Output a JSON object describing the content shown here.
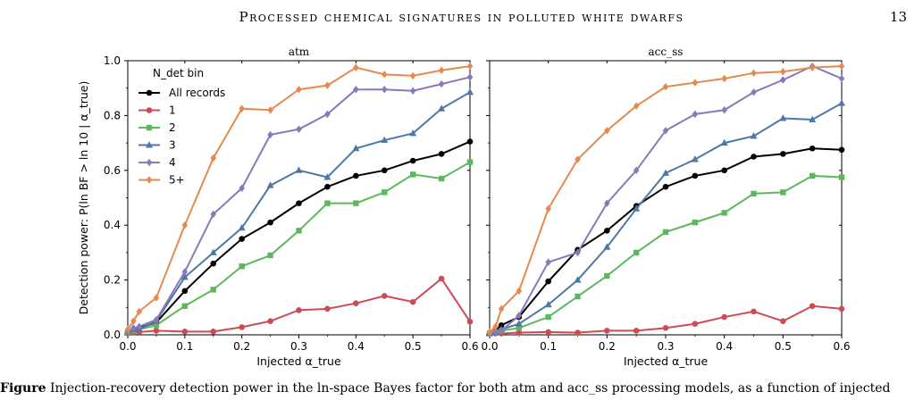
{
  "page": {
    "running_title": "Processed chemical signatures in polluted white dwarfs",
    "page_number": "13",
    "caption_lead": "Figure",
    "caption_text": "Injection-recovery detection power in the ln-space Bayes factor for both atm and acc_ss processing models, as a function of injected"
  },
  "chart_data": [
    {
      "type": "line",
      "title": "atm",
      "xlabel": "Injected α_true",
      "ylabel": "Detection power: P(ln BF > ln 10 | α_true)",
      "xlim": [
        0.0,
        0.6
      ],
      "ylim": [
        0.0,
        1.0
      ],
      "xticks": [
        "0.0",
        "0.1",
        "0.2",
        "0.3",
        "0.4",
        "0.5",
        "0.6"
      ],
      "yticks": [
        "0.0",
        "0.2",
        "0.4",
        "0.6",
        "0.8",
        "1.0"
      ],
      "legend_title": "N_det bin",
      "legend_position": "upper-left",
      "x": [
        0.0,
        0.01,
        0.02,
        0.05,
        0.1,
        0.15,
        0.2,
        0.25,
        0.3,
        0.35,
        0.4,
        0.45,
        0.5,
        0.55,
        0.6
      ],
      "series": [
        {
          "name": "All records",
          "color": "#000000",
          "marker": "circle",
          "values": [
            0.01,
            0.02,
            0.025,
            0.045,
            0.16,
            0.26,
            0.35,
            0.41,
            0.48,
            0.54,
            0.58,
            0.6,
            0.635,
            0.66,
            0.705
          ]
        },
        {
          "name": "1",
          "color": "#cc4c56",
          "marker": "circle",
          "values": [
            0.005,
            0.008,
            0.01,
            0.015,
            0.012,
            0.012,
            0.028,
            0.05,
            0.09,
            0.095,
            0.115,
            0.142,
            0.12,
            0.205,
            0.048
          ]
        },
        {
          "name": "2",
          "color": "#5cb85c",
          "marker": "square",
          "values": [
            0.01,
            0.015,
            0.02,
            0.035,
            0.105,
            0.165,
            0.25,
            0.29,
            0.38,
            0.48,
            0.48,
            0.52,
            0.585,
            0.57,
            0.63
          ]
        },
        {
          "name": "3",
          "color": "#4d78a8",
          "marker": "triangle",
          "values": [
            0.015,
            0.02,
            0.02,
            0.05,
            0.21,
            0.3,
            0.39,
            0.545,
            0.6,
            0.575,
            0.68,
            0.71,
            0.735,
            0.825,
            0.885
          ]
        },
        {
          "name": "4",
          "color": "#8a78b8",
          "marker": "diamond",
          "values": [
            0.01,
            0.025,
            0.03,
            0.055,
            0.23,
            0.44,
            0.535,
            0.73,
            0.75,
            0.805,
            0.895,
            0.895,
            0.89,
            0.915,
            0.94
          ]
        },
        {
          "name": "5+",
          "color": "#e6894e",
          "marker": "diamond",
          "values": [
            0.02,
            0.05,
            0.085,
            0.135,
            0.4,
            0.645,
            0.825,
            0.82,
            0.895,
            0.91,
            0.975,
            0.95,
            0.945,
            0.965,
            0.98
          ]
        }
      ]
    },
    {
      "type": "line",
      "title": "acc_ss",
      "xlabel": "Injected α_true",
      "ylabel": "",
      "xlim": [
        0.0,
        0.6
      ],
      "ylim": [
        0.0,
        1.0
      ],
      "xticks": [
        "0.0",
        "0.1",
        "0.2",
        "0.3",
        "0.4",
        "0.5",
        "0.6"
      ],
      "yticks": [],
      "x": [
        0.0,
        0.01,
        0.02,
        0.05,
        0.1,
        0.15,
        0.2,
        0.25,
        0.3,
        0.35,
        0.4,
        0.45,
        0.5,
        0.55,
        0.6
      ],
      "series": [
        {
          "name": "All records",
          "color": "#000000",
          "marker": "circle",
          "values": [
            0.005,
            0.015,
            0.035,
            0.065,
            0.195,
            0.31,
            0.38,
            0.47,
            0.54,
            0.58,
            0.6,
            0.65,
            0.66,
            0.68,
            0.675
          ]
        },
        {
          "name": "1",
          "color": "#cc4c56",
          "marker": "circle",
          "values": [
            0.005,
            0.005,
            0.005,
            0.008,
            0.01,
            0.008,
            0.015,
            0.015,
            0.025,
            0.04,
            0.065,
            0.085,
            0.05,
            0.105,
            0.095
          ]
        },
        {
          "name": "2",
          "color": "#5cb85c",
          "marker": "square",
          "values": [
            0.005,
            0.01,
            0.015,
            0.025,
            0.065,
            0.14,
            0.215,
            0.3,
            0.375,
            0.41,
            0.445,
            0.515,
            0.52,
            0.58,
            0.575
          ]
        },
        {
          "name": "3",
          "color": "#4d78a8",
          "marker": "triangle",
          "values": [
            0.005,
            0.01,
            0.02,
            0.04,
            0.11,
            0.2,
            0.32,
            0.46,
            0.59,
            0.64,
            0.7,
            0.725,
            0.79,
            0.785,
            0.845
          ]
        },
        {
          "name": "4",
          "color": "#8a78b8",
          "marker": "diamond",
          "values": [
            0.005,
            0.01,
            0.015,
            0.07,
            0.265,
            0.3,
            0.48,
            0.6,
            0.745,
            0.805,
            0.82,
            0.885,
            0.93,
            0.98,
            0.935
          ]
        },
        {
          "name": "5+",
          "color": "#e6894e",
          "marker": "diamond",
          "values": [
            0.01,
            0.03,
            0.095,
            0.16,
            0.46,
            0.64,
            0.745,
            0.835,
            0.905,
            0.92,
            0.935,
            0.955,
            0.96,
            0.975,
            0.98
          ]
        }
      ]
    }
  ]
}
